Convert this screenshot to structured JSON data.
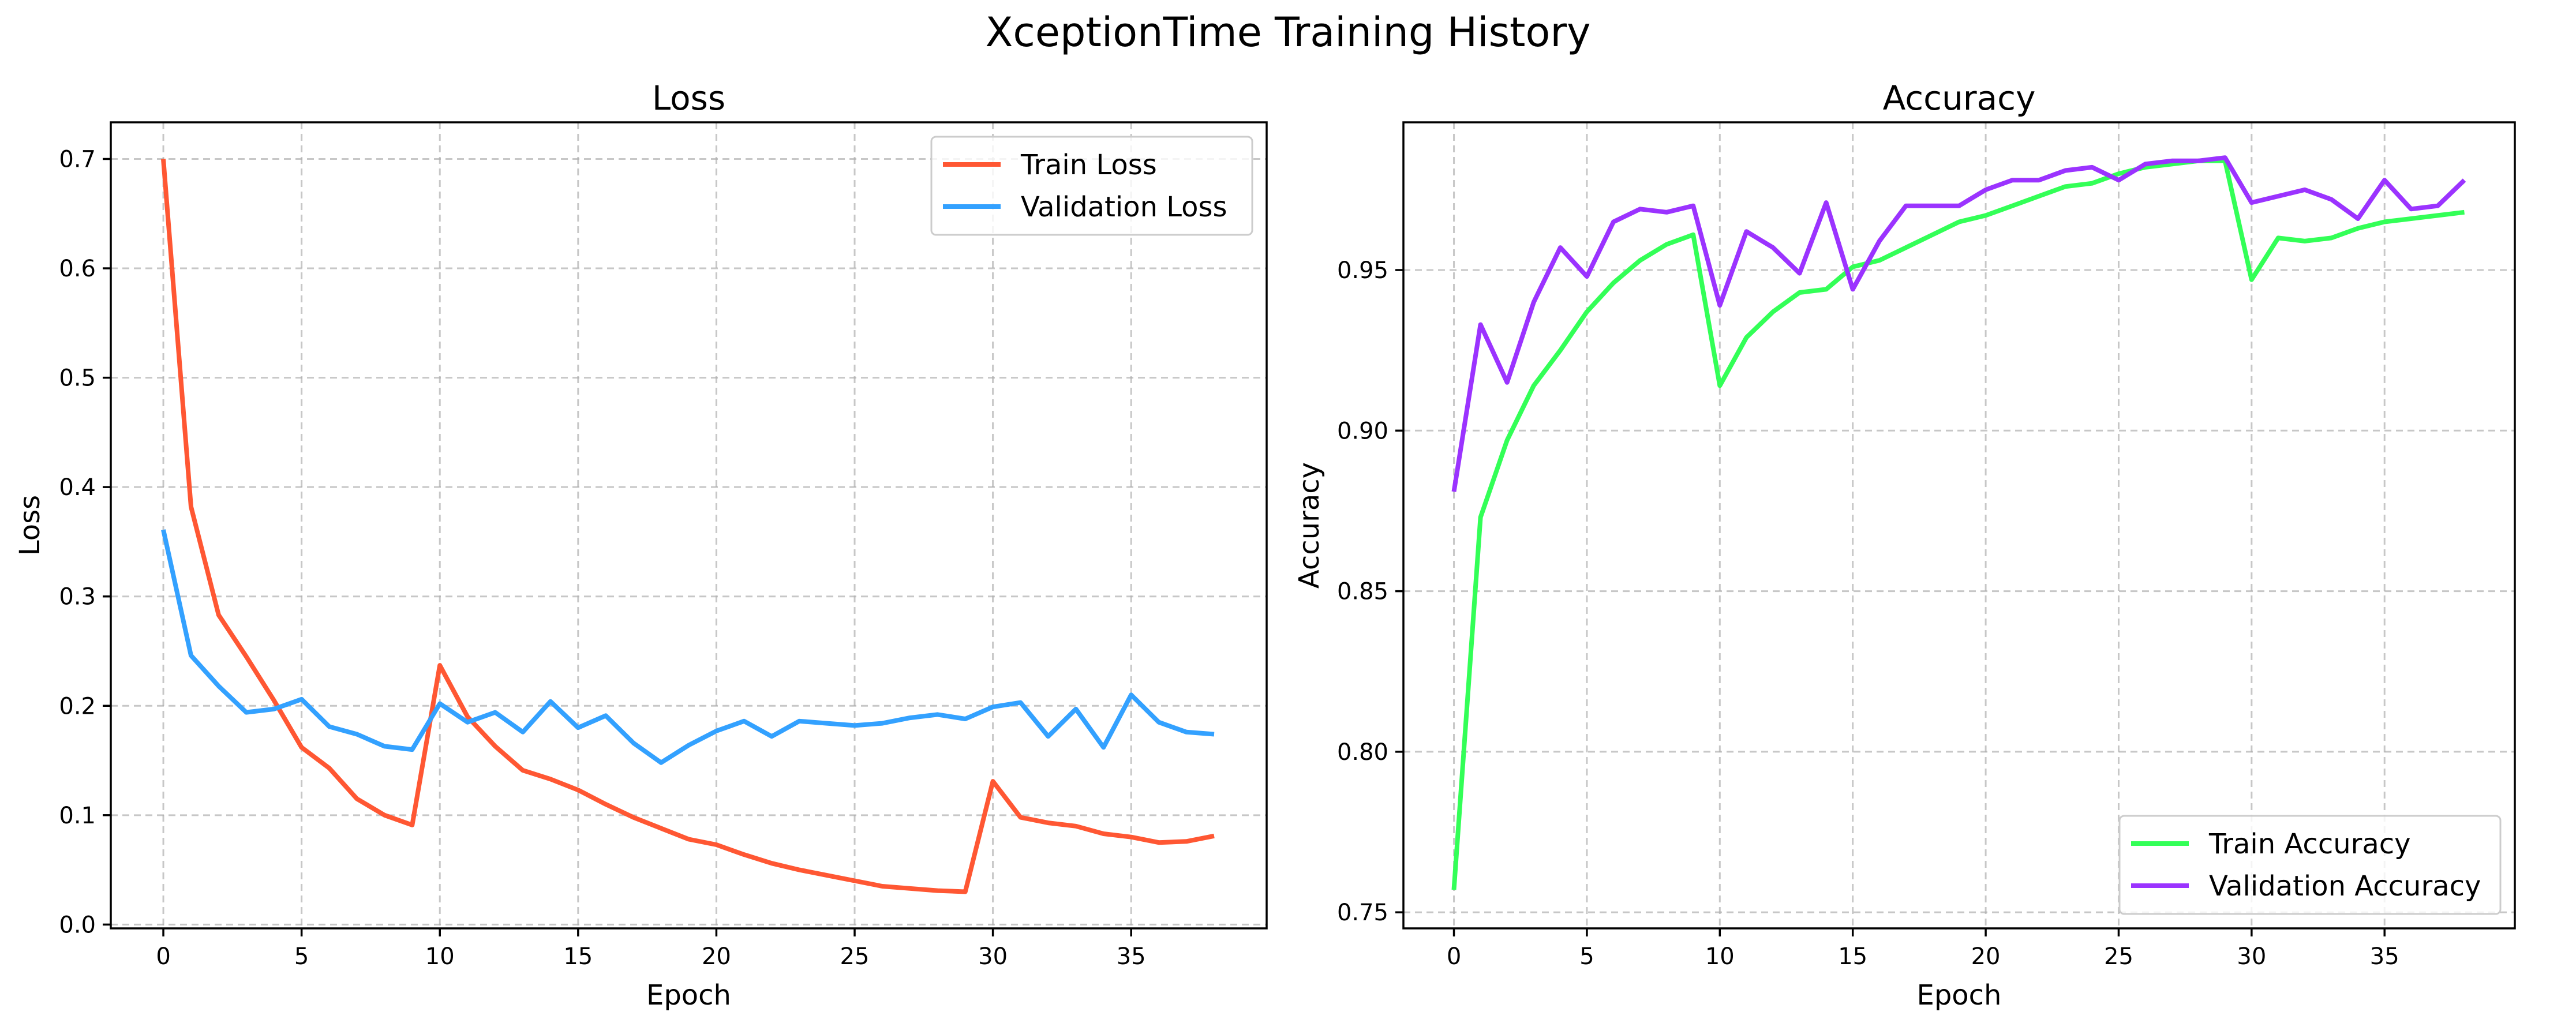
{
  "figure_title": "XceptionTime Training History",
  "chart_data": [
    {
      "type": "line",
      "title": "Loss",
      "xlabel": "Epoch",
      "ylabel": "Loss",
      "xlim": [
        -1.9,
        39.9
      ],
      "ylim": [
        -0.0035,
        0.7335
      ],
      "xticks": [
        0,
        5,
        10,
        15,
        20,
        25,
        30,
        35
      ],
      "yticks": [
        0.0,
        0.1,
        0.2,
        0.3,
        0.4,
        0.5,
        0.6,
        0.7
      ],
      "ytick_labels": [
        "0.0",
        "0.1",
        "0.2",
        "0.3",
        "0.4",
        "0.5",
        "0.6",
        "0.7"
      ],
      "grid": true,
      "legend_position": "top-right",
      "x": [
        0,
        1,
        2,
        3,
        4,
        5,
        6,
        7,
        8,
        9,
        10,
        11,
        12,
        13,
        14,
        15,
        16,
        17,
        18,
        19,
        20,
        21,
        22,
        23,
        24,
        25,
        26,
        27,
        28,
        29,
        30,
        31,
        32,
        33,
        34,
        35,
        36,
        37,
        38
      ],
      "series": [
        {
          "name": "Train Loss",
          "color": "#ff5733",
          "values": [
            0.7,
            0.382,
            0.283,
            0.245,
            0.205,
            0.162,
            0.143,
            0.115,
            0.1,
            0.091,
            0.237,
            0.19,
            0.163,
            0.141,
            0.133,
            0.123,
            0.11,
            0.098,
            0.088,
            0.078,
            0.073,
            0.064,
            0.056,
            0.05,
            0.045,
            0.04,
            0.035,
            0.033,
            0.031,
            0.03,
            0.131,
            0.098,
            0.093,
            0.09,
            0.083,
            0.08,
            0.075,
            0.076,
            0.081
          ]
        },
        {
          "name": "Validation Loss",
          "color": "#33a1ff",
          "values": [
            0.361,
            0.246,
            0.218,
            0.194,
            0.197,
            0.206,
            0.181,
            0.174,
            0.163,
            0.16,
            0.202,
            0.185,
            0.194,
            0.176,
            0.204,
            0.18,
            0.191,
            0.166,
            0.148,
            0.164,
            0.177,
            0.186,
            0.172,
            0.186,
            0.184,
            0.182,
            0.184,
            0.189,
            0.192,
            0.188,
            0.199,
            0.203,
            0.172,
            0.197,
            0.162,
            0.21,
            0.185,
            0.176,
            0.174
          ]
        }
      ]
    },
    {
      "type": "line",
      "title": "Accuracy",
      "xlabel": "Epoch",
      "ylabel": "Accuracy",
      "xlim": [
        -1.9,
        39.9
      ],
      "ylim": [
        0.745,
        0.996
      ],
      "xticks": [
        0,
        5,
        10,
        15,
        20,
        25,
        30,
        35
      ],
      "yticks": [
        0.75,
        0.8,
        0.85,
        0.9,
        0.95
      ],
      "ytick_labels": [
        "0.75",
        "0.80",
        "0.85",
        "0.90",
        "0.95"
      ],
      "grid": true,
      "legend_position": "bottom-right",
      "x": [
        0,
        1,
        2,
        3,
        4,
        5,
        6,
        7,
        8,
        9,
        10,
        11,
        12,
        13,
        14,
        15,
        16,
        17,
        18,
        19,
        20,
        21,
        22,
        23,
        24,
        25,
        26,
        27,
        28,
        29,
        30,
        31,
        32,
        33,
        34,
        35,
        36,
        37,
        38
      ],
      "series": [
        {
          "name": "Train Accuracy",
          "color": "#33ff57",
          "values": [
            0.757,
            0.873,
            0.897,
            0.914,
            0.925,
            0.937,
            0.946,
            0.953,
            0.958,
            0.961,
            0.914,
            0.929,
            0.937,
            0.943,
            0.944,
            0.951,
            0.953,
            0.957,
            0.961,
            0.965,
            0.967,
            0.97,
            0.973,
            0.976,
            0.977,
            0.98,
            0.982,
            0.983,
            0.984,
            0.984,
            0.947,
            0.96,
            0.959,
            0.96,
            0.963,
            0.965,
            0.966,
            0.967,
            0.968
          ]
        },
        {
          "name": "Validation Accuracy",
          "color": "#9b33ff",
          "values": [
            0.881,
            0.933,
            0.915,
            0.94,
            0.957,
            0.948,
            0.965,
            0.969,
            0.968,
            0.97,
            0.939,
            0.962,
            0.957,
            0.949,
            0.971,
            0.944,
            0.959,
            0.97,
            0.97,
            0.97,
            0.975,
            0.978,
            0.978,
            0.981,
            0.982,
            0.978,
            0.983,
            0.984,
            0.984,
            0.985,
            0.971,
            0.973,
            0.975,
            0.972,
            0.966,
            0.978,
            0.969,
            0.97,
            0.978
          ]
        }
      ]
    }
  ]
}
